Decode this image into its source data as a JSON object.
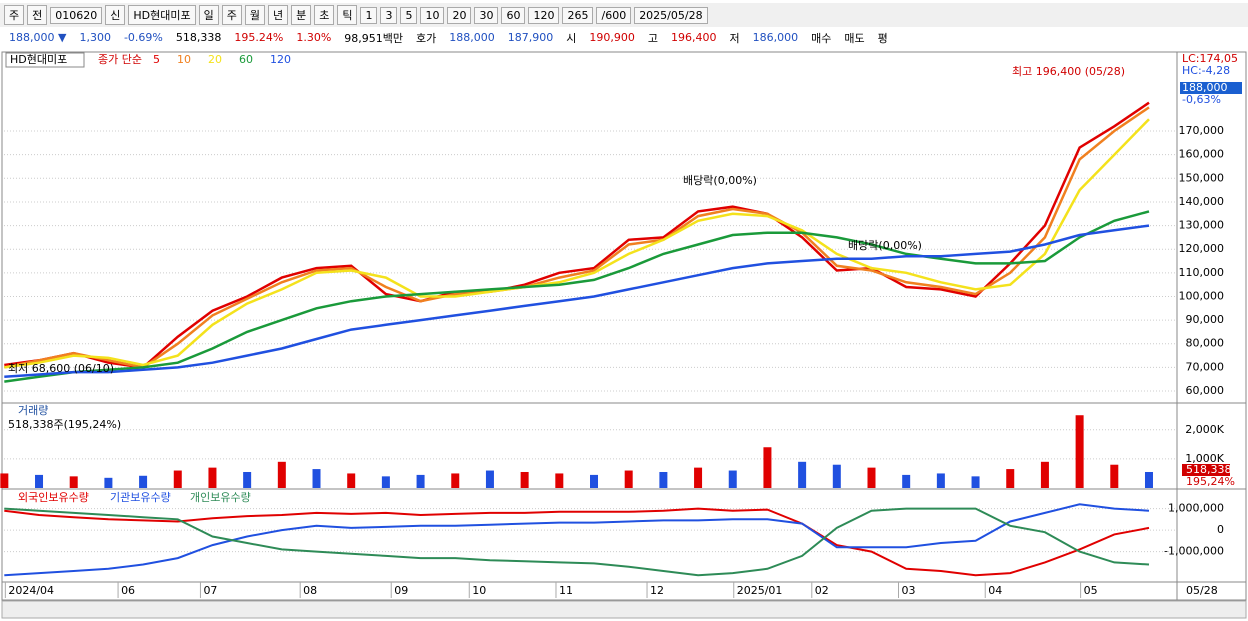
{
  "toolbar": {
    "row1": [
      "주",
      "전",
      "010620",
      "신",
      "HD현대미포",
      "일",
      "주",
      "월",
      "년",
      "분",
      "초",
      "틱",
      "1",
      "3",
      "5",
      "10",
      "20",
      "30",
      "60",
      "120",
      "265",
      "/600",
      "2025/05/28"
    ],
    "row2": [
      "188,000 ▼",
      "1,300",
      "-0.69%",
      "518,338",
      "195.24%",
      "1.30%",
      "98,951백만",
      "호가",
      "188,000",
      "187,900",
      "시",
      "190,900",
      "고",
      "196,400",
      "저",
      "186,000",
      "매수",
      "매도",
      "평"
    ]
  },
  "chart_data": [
    {
      "type": "line",
      "stock_name": "HD현대미포",
      "legend_title": "종가 단순",
      "x": [
        0,
        8,
        16,
        24,
        32,
        40,
        48,
        56,
        64,
        72,
        80,
        88,
        96,
        104,
        112,
        120,
        128,
        136,
        144,
        152,
        160,
        168,
        176,
        184,
        192,
        200,
        208,
        216,
        224,
        232,
        240,
        248,
        256,
        264
      ],
      "xlim": [
        -1,
        270
      ],
      "ylim": [
        56200,
        200900
      ],
      "yticks": [
        {
          "value": 60000,
          "label": "60,000"
        },
        {
          "value": 70000,
          "label": "70,000"
        },
        {
          "value": 80000,
          "label": "80,000"
        },
        {
          "value": 90000,
          "label": "90,000"
        },
        {
          "value": 100000,
          "label": "100,000"
        },
        {
          "value": 110000,
          "label": "110,000"
        },
        {
          "value": 120000,
          "label": "120,000"
        },
        {
          "value": 130000,
          "label": "130,000"
        },
        {
          "value": 140000,
          "label": "140,000"
        },
        {
          "value": 150000,
          "label": "150,000"
        },
        {
          "value": 160000,
          "label": "160,000"
        },
        {
          "value": 170000,
          "label": "170,000"
        }
      ],
      "grid": true,
      "series": [
        {
          "name": "5",
          "color": "#e00000",
          "values": [
            71000,
            73000,
            76000,
            72000,
            70000,
            83000,
            94000,
            100000,
            108000,
            112000,
            113000,
            101000,
            98000,
            102000,
            102000,
            105000,
            110000,
            112000,
            124000,
            125000,
            136000,
            138000,
            135000,
            125000,
            111000,
            112000,
            104000,
            103000,
            100000,
            114000,
            130000,
            163000,
            172000,
            182000
          ]
        },
        {
          "name": "10",
          "color": "#f08020",
          "values": [
            70000,
            73000,
            76000,
            73000,
            70000,
            80000,
            92000,
            99000,
            106000,
            111000,
            112000,
            104000,
            98000,
            101000,
            102000,
            104000,
            108000,
            111000,
            122000,
            124000,
            134000,
            137000,
            135000,
            127000,
            113000,
            111000,
            106000,
            104000,
            101000,
            110000,
            125000,
            158000,
            170000,
            180000
          ]
        },
        {
          "name": "20",
          "color": "#f4e21c",
          "values": [
            70000,
            72000,
            75000,
            74000,
            71000,
            75000,
            88000,
            97000,
            103000,
            110000,
            111000,
            108000,
            100000,
            100000,
            102000,
            104000,
            106000,
            110000,
            118000,
            124000,
            132000,
            135000,
            134000,
            128000,
            118000,
            112000,
            110000,
            106000,
            103000,
            105000,
            118000,
            145000,
            160000,
            175000
          ]
        },
        {
          "name": "60",
          "color": "#1a9a3a",
          "values": [
            64000,
            66000,
            68000,
            69000,
            70000,
            72000,
            78000,
            85000,
            90000,
            95000,
            98000,
            100000,
            101000,
            102000,
            103000,
            104000,
            105000,
            107000,
            112000,
            118000,
            122000,
            126000,
            127000,
            127000,
            125000,
            122000,
            118000,
            116000,
            114000,
            114000,
            115000,
            125000,
            132000,
            136000
          ]
        },
        {
          "name": "120",
          "color": "#2050e0",
          "values": [
            66000,
            67000,
            68000,
            68000,
            69000,
            70000,
            72000,
            75000,
            78000,
            82000,
            86000,
            88000,
            90000,
            92000,
            94000,
            96000,
            98000,
            100000,
            103000,
            106000,
            109000,
            112000,
            114000,
            115000,
            116000,
            116000,
            117000,
            117000,
            118000,
            119000,
            122000,
            126000,
            128000,
            130000
          ]
        }
      ],
      "annotations": [
        "최고 196,400 (05/28)",
        "최저 68,600 (06/10)",
        "배당락(0,00%)",
        "배당락(0,00%)"
      ],
      "right_labels": [
        "LC:174,05",
        "HC:-4,28",
        "188,000",
        "-0,63%"
      ]
    },
    {
      "type": "bar",
      "subtitle": "518,338주(195,24%)",
      "x": [
        0,
        8,
        16,
        24,
        32,
        40,
        48,
        56,
        64,
        72,
        80,
        88,
        96,
        104,
        112,
        120,
        128,
        136,
        144,
        152,
        160,
        168,
        176,
        184,
        192,
        200,
        208,
        216,
        224,
        232,
        240,
        248,
        256,
        264
      ],
      "xlim": [
        -1,
        270
      ],
      "ylim": [
        0,
        2680
      ],
      "yticks": [
        {
          "value": 1000,
          "label": "1,000K"
        },
        {
          "value": 2000,
          "label": "2,000K"
        }
      ],
      "grid": true,
      "series": [
        {
          "name": "거래량",
          "values": [
            500,
            450,
            400,
            350,
            420,
            600,
            700,
            550,
            900,
            650,
            500,
            400,
            450,
            500,
            600,
            550,
            500,
            450,
            600,
            550,
            700,
            600,
            1400,
            900,
            800,
            700,
            450,
            500,
            400,
            650,
            900,
            2500,
            800,
            550
          ]
        }
      ],
      "bar_colors": [
        "#e00000",
        "#2050e0",
        "#e00000",
        "#2050e0",
        "#2050e0",
        "#e00000",
        "#e00000",
        "#2050e0",
        "#e00000",
        "#2050e0",
        "#e00000",
        "#2050e0",
        "#2050e0",
        "#e00000",
        "#2050e0",
        "#e00000",
        "#e00000",
        "#2050e0",
        "#e00000",
        "#2050e0",
        "#e00000",
        "#2050e0",
        "#e00000",
        "#2050e0",
        "#2050e0",
        "#e00000",
        "#2050e0",
        "#2050e0",
        "#2050e0",
        "#e00000",
        "#e00000",
        "#e00000",
        "#e00000",
        "#2050e0"
      ],
      "right_labels": [
        "518,338",
        "195,24%"
      ]
    },
    {
      "type": "line",
      "x": [
        0,
        8,
        16,
        24,
        32,
        40,
        48,
        56,
        64,
        72,
        80,
        88,
        96,
        104,
        112,
        120,
        128,
        136,
        144,
        152,
        160,
        168,
        176,
        184,
        192,
        200,
        208,
        216,
        224,
        232,
        240,
        248,
        256,
        264
      ],
      "xlim": [
        -1,
        270
      ],
      "ylim": [
        -2320000,
        1770000
      ],
      "yticks": [
        {
          "value": 1000000,
          "label": "1,000,000"
        },
        0,
        {
          "value": -1000000,
          "label": "-1,000,000"
        }
      ],
      "grid": true,
      "series": [
        {
          "name": "외국인보유수량",
          "color": "#e00000",
          "values": [
            900000,
            700000,
            600000,
            500000,
            450000,
            400000,
            550000,
            650000,
            700000,
            800000,
            750000,
            800000,
            700000,
            750000,
            800000,
            800000,
            850000,
            850000,
            850000,
            900000,
            1000000,
            900000,
            950000,
            300000,
            -700000,
            -1000000,
            -1800000,
            -1900000,
            -2100000,
            -2000000,
            -1500000,
            -900000,
            -200000,
            100000
          ]
        },
        {
          "name": "기관보유수량",
          "color": "#2050e0",
          "values": [
            -2100000,
            -2000000,
            -1900000,
            -1800000,
            -1600000,
            -1300000,
            -700000,
            -300000,
            0,
            200000,
            100000,
            150000,
            200000,
            200000,
            250000,
            300000,
            350000,
            350000,
            400000,
            450000,
            450000,
            500000,
            500000,
            300000,
            -800000,
            -800000,
            -800000,
            -600000,
            -500000,
            400000,
            800000,
            1200000,
            1000000,
            900000
          ]
        },
        {
          "name": "개인보유수량",
          "color": "#2e8b57",
          "values": [
            1000000,
            900000,
            800000,
            700000,
            600000,
            500000,
            -300000,
            -600000,
            -900000,
            -1000000,
            -1100000,
            -1200000,
            -1300000,
            -1300000,
            -1400000,
            -1450000,
            -1500000,
            -1550000,
            -1700000,
            -1900000,
            -2100000,
            -2000000,
            -1800000,
            -1200000,
            100000,
            900000,
            1000000,
            1000000,
            1000000,
            200000,
            -100000,
            -1000000,
            -1500000,
            -1600000
          ]
        }
      ],
      "xticks": [
        {
          "value": 0,
          "label": "2024/04"
        },
        {
          "value": 26,
          "label": "06"
        },
        {
          "value": 45,
          "label": "07"
        },
        {
          "value": 68,
          "label": "08"
        },
        {
          "value": 89,
          "label": "09"
        },
        {
          "value": 107,
          "label": "10"
        },
        {
          "value": 127,
          "label": "11"
        },
        {
          "value": 148,
          "label": "12"
        },
        {
          "value": 168,
          "label": "2025/01"
        },
        {
          "value": 186,
          "label": "02"
        },
        {
          "value": 206,
          "label": "03"
        },
        {
          "value": 226,
          "label": "04"
        },
        {
          "value": 248,
          "label": "05"
        }
      ],
      "x_end_label": "05/28"
    }
  ]
}
